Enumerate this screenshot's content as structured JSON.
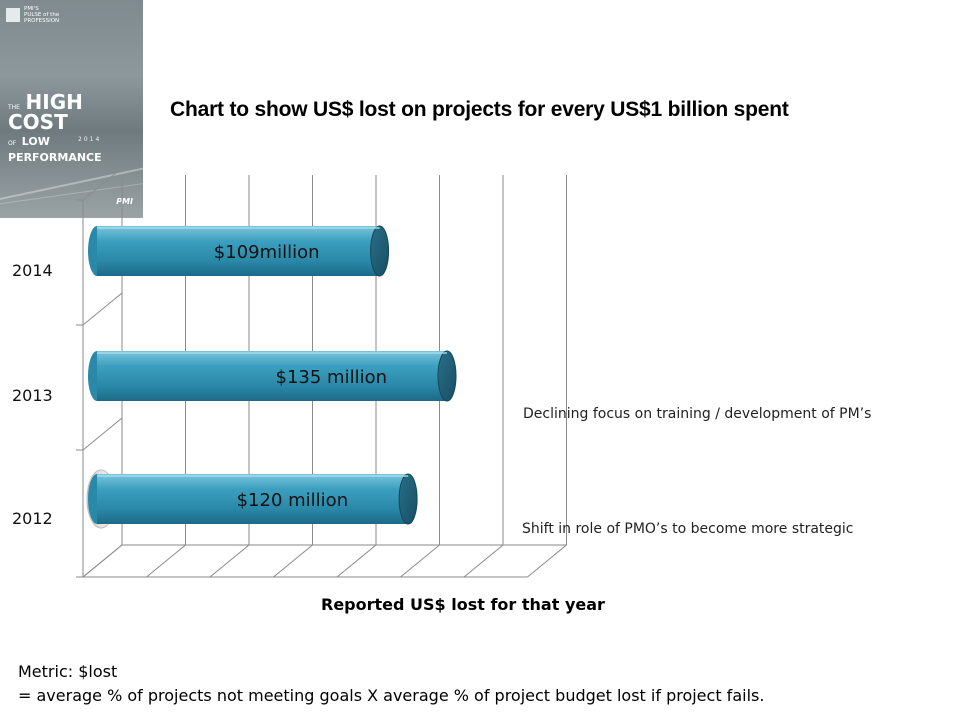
{
  "cover": {
    "brand_line1": "PMI'S",
    "brand_line2": "PULSE of the",
    "brand_line3": "PROFESSION",
    "title_prefix": "THE",
    "title_main": "HIGH COST",
    "title_sub_prefix": "OF",
    "title_sub": "LOW PERFORMANCE",
    "year": "2014",
    "logo": "PMI"
  },
  "chart_data": {
    "type": "bar",
    "orientation": "horizontal",
    "title": "Chart to show US$ lost on projects for every US$1 billion spent",
    "xlabel": "Reported US$ lost for that year",
    "ylabel": "",
    "categories": [
      "2014",
      "2013",
      "2012"
    ],
    "values": [
      109,
      135,
      120
    ],
    "unit": "US$ million",
    "data_labels": [
      "$109million",
      "$135 million",
      "$120 million"
    ],
    "grid": true,
    "bar_color": "#2e8ba9"
  },
  "annotations": {
    "a2013": "Declining focus on training / development of PM’s",
    "a2012": "Shift in role of PMO’s to become more strategic"
  },
  "metric": {
    "line1": "Metric: $lost",
    "line2": "= average % of projects not meeting goals X average % of project budget lost if project fails."
  }
}
